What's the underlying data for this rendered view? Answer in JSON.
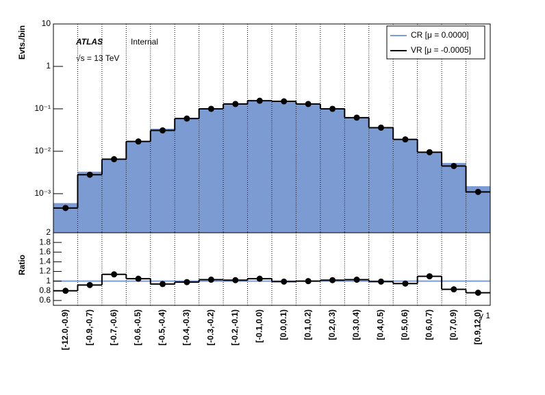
{
  "chart_data": [
    {
      "type": "log-histogram",
      "y_label": "Evts./bin",
      "log_y": true,
      "grid": true,
      "annotations": [
        "ATLAS",
        "Internal",
        "√s = 13 TeV"
      ],
      "series": [
        {
          "name": "CR [μ = 0.0000]",
          "color": "#7b9bd2",
          "values": [
            0.0006,
            0.0033,
            0.0065,
            0.017,
            0.034,
            0.06,
            0.1,
            0.135,
            0.155,
            0.15,
            0.13,
            0.1,
            0.062,
            0.037,
            0.019,
            0.0098,
            0.0053,
            0.0015
          ]
        },
        {
          "name": "VR [μ = -0.0005]",
          "color": "#000000",
          "values": [
            0.00046,
            0.0028,
            0.0065,
            0.017,
            0.031,
            0.059,
            0.1,
            0.13,
            0.155,
            0.15,
            0.13,
            0.1,
            0.062,
            0.036,
            0.019,
            0.0095,
            0.0045,
            0.0011
          ]
        }
      ],
      "ylim": [
        0.00012,
        10
      ],
      "yticks": [
        {
          "value": 0.001,
          "label": "10⁻³"
        },
        {
          "value": 0.01,
          "label": "10⁻²"
        },
        {
          "value": 0.1,
          "label": "10⁻¹"
        },
        1,
        10
      ]
    },
    {
      "type": "ratio",
      "y_label": "Ratio",
      "x_label": "γ 1",
      "grid": true,
      "color": "#000000",
      "reference_line": 1,
      "reference_color": "#7b9bd2",
      "categories": [
        "[-12.0,-0.9)",
        "[-0.9,-0.7)",
        "[-0.7,-0.6)",
        "[-0.6,-0.5)",
        "[-0.5,-0.4)",
        "[-0.4,-0.3)",
        "[-0.3,-0.2)",
        "[-0.2,-0.1)",
        "[-0.1,0.0)",
        "[0.0,0.1)",
        "[0.1,0.2)",
        "[0.2,0.3)",
        "[0.3,0.4)",
        "[0.4,0.5)",
        "[0.5,0.6)",
        "[0.6,0.7)",
        "[0.7,0.9)",
        "[0.9,12.0)"
      ],
      "values": [
        0.8,
        0.92,
        1.14,
        1.05,
        0.94,
        0.98,
        1.03,
        1.02,
        1.05,
        0.99,
        1.0,
        1.02,
        1.03,
        0.99,
        0.95,
        1.1,
        0.83,
        0.76
      ],
      "ylim": [
        0.5,
        2
      ],
      "yticks": [
        0.6,
        0.8,
        1,
        1.2,
        1.4,
        1.6,
        1.8,
        2
      ]
    }
  ]
}
